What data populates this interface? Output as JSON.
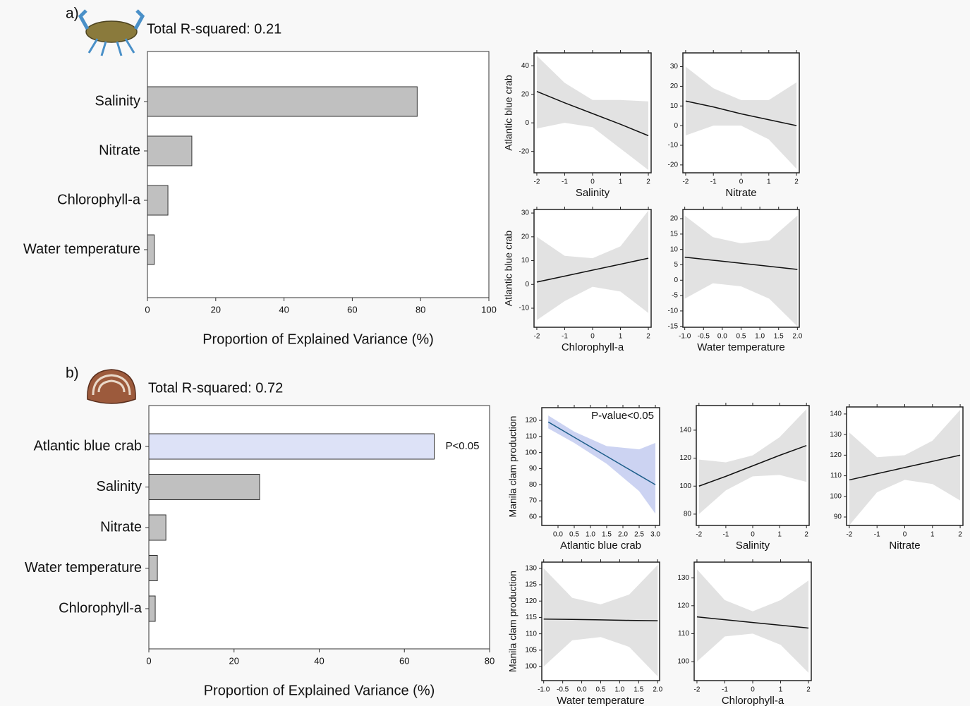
{
  "chart_data": [
    {
      "type": "bar",
      "panel_label": "a)",
      "title": "Total R-squared: 0.21",
      "x_label": "Proportion of Explained Variance (%)",
      "categories": [
        "Salinity",
        "Nitrate",
        "Chlorophyll-a",
        "Water temperature"
      ],
      "values": [
        79,
        13,
        6,
        2
      ],
      "colors": [
        "#c0c0c0",
        "#c0c0c0",
        "#c0c0c0",
        "#c0c0c0"
      ],
      "xlim": [
        0,
        100
      ],
      "xticks": [
        0,
        20,
        40,
        60,
        80,
        100
      ]
    },
    {
      "type": "line",
      "x_label": "Salinity",
      "y_label": "Atlantic blue crab",
      "color": "#111111",
      "band_color": "#e2e2e2",
      "x": [
        -2,
        -1,
        0,
        1,
        2
      ],
      "values": [
        22,
        14,
        6.5,
        -1,
        -9
      ],
      "lower": [
        -4,
        0,
        -3,
        -18,
        -33
      ],
      "upper": [
        47,
        28,
        16,
        16,
        15
      ],
      "xlim": [
        -2.1,
        2.1
      ],
      "xticks": [
        -2,
        -1,
        0,
        1,
        2
      ],
      "ylim": [
        -35,
        49
      ],
      "yticks": [
        -20,
        0,
        20,
        40
      ]
    },
    {
      "type": "line",
      "x_label": "Nitrate",
      "color": "#111111",
      "band_color": "#e2e2e2",
      "x": [
        -2,
        -1,
        0,
        1,
        2
      ],
      "values": [
        12.5,
        9.5,
        6,
        3,
        0
      ],
      "lower": [
        -5,
        0,
        0,
        -7,
        -22
      ],
      "upper": [
        30,
        19,
        13,
        13,
        22
      ],
      "xlim": [
        -2.1,
        2.1
      ],
      "xticks": [
        -2,
        -1,
        0,
        1,
        2
      ],
      "ylim": [
        -24,
        37
      ],
      "yticks": [
        -20,
        -10,
        0,
        10,
        20,
        30
      ]
    },
    {
      "type": "line",
      "x_label": "Chlorophyll-a",
      "y_label": "Atlantic blue crab",
      "color": "#111111",
      "band_color": "#e2e2e2",
      "x": [
        -2,
        -1,
        0,
        1,
        2
      ],
      "values": [
        1,
        3.5,
        6,
        8.5,
        11
      ],
      "lower": [
        -15,
        -7,
        -1,
        -3,
        -12
      ],
      "upper": [
        20,
        12,
        11,
        16,
        31
      ],
      "xlim": [
        -2.1,
        2.1
      ],
      "xticks": [
        -2,
        -1,
        0,
        1,
        2
      ],
      "ylim": [
        -18,
        31.5
      ],
      "yticks": [
        -10,
        0,
        10,
        20,
        30
      ]
    },
    {
      "type": "line",
      "x_label": "Water temperature",
      "color": "#111111",
      "band_color": "#e2e2e2",
      "x": [
        -1,
        -0.25,
        0.5,
        1.25,
        2
      ],
      "values": [
        7.5,
        6.5,
        5.5,
        4.5,
        3.5
      ],
      "lower": [
        -6,
        -1,
        -2,
        -6,
        -15
      ],
      "upper": [
        21,
        14,
        12,
        13,
        21
      ],
      "xlim": [
        -1.05,
        2.05
      ],
      "xticks": [
        {
          "value": -1,
          "label": "-1.0"
        },
        {
          "value": -0.5,
          "label": "-0.5"
        },
        {
          "value": 0,
          "label": "0.0"
        },
        0.5,
        {
          "value": 1,
          "label": "1.0"
        },
        1.5,
        {
          "value": 2,
          "label": "2.0"
        }
      ],
      "ylim": [
        -15.3,
        23
      ],
      "yticks": [
        -15,
        -10,
        -5,
        0,
        5,
        10,
        15,
        20
      ]
    },
    {
      "type": "bar",
      "panel_label": "b)",
      "title": "Total R-squared: 0.72",
      "x_label": "Proportion of Explained Variance (%)",
      "categories": [
        "Atlantic blue crab",
        "Salinity",
        "Nitrate",
        "Water temperature",
        "Chlorophyll-a"
      ],
      "values": [
        67,
        26,
        4,
        2,
        1.5
      ],
      "value_annotations": [
        "P<0.05",
        null,
        null,
        null,
        null
      ],
      "colors": [
        "#dde2f7",
        "#c0c0c0",
        "#c0c0c0",
        "#c0c0c0",
        "#c0c0c0"
      ],
      "xlim": [
        0,
        80
      ],
      "xticks": [
        0,
        20,
        40,
        60,
        80
      ]
    },
    {
      "type": "line",
      "x_label": "Atlantic blue crab",
      "y_label": "Manila clam production",
      "annotation": "P-value<0.05",
      "color": "#1f5f8b",
      "band_color": "#ccd3f2",
      "x": [
        -0.3,
        0.5,
        1.5,
        2.5,
        3.0
      ],
      "values": [
        119,
        109.5,
        97.7,
        85.9,
        80
      ],
      "lower": [
        115,
        106,
        93,
        76,
        62
      ],
      "upper": [
        123,
        113,
        104,
        102,
        106
      ],
      "xlim": [
        -0.5,
        3.13
      ],
      "xticks": [
        {
          "value": 0,
          "label": "0.0"
        },
        0.5,
        {
          "value": 1,
          "label": "1.0"
        },
        1.5,
        {
          "value": 2,
          "label": "2.0"
        },
        2.5,
        {
          "value": 3,
          "label": "3.0"
        }
      ],
      "ylim": [
        54.7,
        127.9
      ],
      "yticks": [
        60,
        70,
        80,
        90,
        100,
        110,
        120
      ]
    },
    {
      "type": "line",
      "x_label": "Salinity",
      "color": "#111111",
      "band_color": "#e2e2e2",
      "x": [
        -2,
        -1,
        0,
        1,
        2
      ],
      "values": [
        100,
        107,
        114.5,
        122,
        129
      ],
      "lower": [
        80,
        97,
        107,
        108,
        103
      ],
      "upper": [
        119,
        117,
        122,
        135,
        155
      ],
      "xlim": [
        -2.1,
        2.1
      ],
      "xticks": [
        -2,
        -1,
        0,
        1,
        2
      ],
      "ylim": [
        71.9,
        157.6
      ],
      "yticks": [
        80,
        100,
        120,
        140
      ]
    },
    {
      "type": "line",
      "x_label": "Nitrate",
      "color": "#111111",
      "band_color": "#e2e2e2",
      "x": [
        -2,
        -1,
        0,
        1,
        2
      ],
      "values": [
        108,
        111,
        114,
        117,
        120
      ],
      "lower": [
        86,
        102,
        108,
        106,
        98
      ],
      "upper": [
        131,
        119,
        120,
        127,
        142
      ],
      "xlim": [
        -2.1,
        2.1
      ],
      "xticks": [
        -2,
        -1,
        0,
        1,
        2
      ],
      "ylim": [
        85.9,
        143.4
      ],
      "yticks": [
        90,
        100,
        110,
        120,
        130,
        140
      ]
    },
    {
      "type": "line",
      "x_label": "Water temperature",
      "y_label": "Manila clam production",
      "color": "#111111",
      "band_color": "#e2e2e2",
      "x": [
        -1,
        -0.25,
        0.5,
        1.25,
        2
      ],
      "values": [
        114.5,
        114.4,
        114.25,
        114.1,
        114
      ],
      "lower": [
        100,
        108,
        109,
        106,
        97
      ],
      "upper": [
        130,
        121,
        119,
        122,
        131
      ],
      "xlim": [
        -1.05,
        2.05
      ],
      "xticks": [
        {
          "value": -1,
          "label": "-1.0"
        },
        {
          "value": -0.5,
          "label": "-0.5"
        },
        {
          "value": 0,
          "label": "0.0"
        },
        0.5,
        {
          "value": 1,
          "label": "1.0"
        },
        1.5,
        {
          "value": 2,
          "label": "2.0"
        }
      ],
      "ylim": [
        95.7,
        131.9
      ],
      "yticks": [
        100,
        105,
        110,
        115,
        120,
        125,
        130
      ]
    },
    {
      "type": "line",
      "x_label": "Chlorophyll-a",
      "color": "#111111",
      "band_color": "#e2e2e2",
      "x": [
        -2,
        -1,
        0,
        1,
        2
      ],
      "values": [
        116,
        115,
        114,
        113,
        112
      ],
      "lower": [
        100,
        109,
        110,
        106,
        96
      ],
      "upper": [
        133,
        122,
        118,
        122,
        129
      ],
      "xlim": [
        -2.1,
        2.1
      ],
      "xticks": [
        -2,
        -1,
        0,
        1,
        2
      ],
      "ylim": [
        93.2,
        135.6
      ],
      "yticks": [
        100,
        110,
        120,
        130
      ]
    }
  ]
}
